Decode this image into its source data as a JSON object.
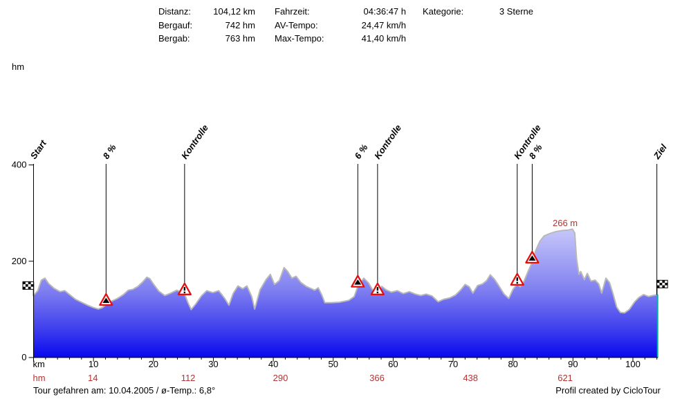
{
  "header": {
    "col1": [
      {
        "label": "Distanz:",
        "value": "104,12 km"
      },
      {
        "label": "Bergauf:",
        "value": "742 hm"
      },
      {
        "label": "Bergab:",
        "value": "763 hm"
      }
    ],
    "col2": [
      {
        "label": "Fahrzeit:",
        "value": "04:36:47 h"
      },
      {
        "label": "AV-Tempo:",
        "value": "24,47 km/h"
      },
      {
        "label": "Max-Tempo:",
        "value": "41,40 km/h"
      }
    ],
    "col3": [
      {
        "label": "Kategorie:",
        "value": "3 Sterne"
      }
    ]
  },
  "footer": {
    "left": "Tour gefahren am: 10.04.2005  /  ø-Temp.: 6,8°",
    "right": "Profil created by CicloTour"
  },
  "colors": {
    "accent_red": "#b43232",
    "marker_red": "#e01010",
    "outline_gray": "#b8b8b8",
    "edge_teal": "#00b0b0",
    "fill_top": "#f8f8ff",
    "fill_mid1": "#c4c4fa",
    "fill_mid2": "#8080f0",
    "fill_mid3": "#4040ee",
    "fill_bottom": "#0808ee"
  },
  "chart_data": {
    "type": "area",
    "title": "",
    "xlabel": "km",
    "ylabel": "hm",
    "xlim": [
      0,
      104.12
    ],
    "ylim": [
      0,
      400
    ],
    "grid": false,
    "legend": false,
    "x_axis": {
      "unit_label": "km",
      "major_ticks": [
        0,
        10,
        20,
        30,
        40,
        50,
        60,
        70,
        80,
        90,
        100
      ],
      "labeled_ticks": [
        10,
        20,
        30,
        40,
        50,
        60,
        70,
        80,
        90,
        100
      ],
      "minor_step": 2
    },
    "y_axis": {
      "unit_label": "hm",
      "ticks": [
        0,
        200,
        400
      ]
    },
    "hm_row": {
      "label": "hm",
      "entries": [
        {
          "km": 9.9,
          "text": "14"
        },
        {
          "km": 25.8,
          "text": "112"
        },
        {
          "km": 41.2,
          "text": "290"
        },
        {
          "km": 57.3,
          "text": "366"
        },
        {
          "km": 72.9,
          "text": "438"
        },
        {
          "km": 88.7,
          "text": "621"
        }
      ]
    },
    "peak_label": {
      "text": "266 m",
      "km": 88.7,
      "elev": 272
    },
    "annotations": [
      {
        "id": "start",
        "type": "flag-start",
        "label": "Start",
        "km": 0,
        "elev": 128
      },
      {
        "id": "slope-1",
        "type": "slope",
        "label": "8 %",
        "km": 12.1,
        "elev": 109
      },
      {
        "id": "kontrolle-1",
        "type": "control",
        "label": "Kontrolle",
        "km": 25.2,
        "elev": 131
      },
      {
        "id": "slope-2",
        "type": "slope",
        "label": "6 %",
        "km": 54.1,
        "elev": 147
      },
      {
        "id": "kontrolle-2",
        "type": "control",
        "label": "Kontrolle",
        "km": 57.4,
        "elev": 131
      },
      {
        "id": "kontrolle-3",
        "type": "control",
        "label": "Kontrolle",
        "km": 80.7,
        "elev": 151
      },
      {
        "id": "slope-3",
        "type": "slope",
        "label": "8 %",
        "km": 83.2,
        "elev": 197
      },
      {
        "id": "ziel",
        "type": "flag-finish",
        "label": "Ziel",
        "km": 104.0,
        "elev": 131
      }
    ],
    "profile": [
      [
        0,
        128
      ],
      [
        0.7,
        138
      ],
      [
        1.3,
        160
      ],
      [
        1.9,
        164
      ],
      [
        2.5,
        153
      ],
      [
        3.4,
        143
      ],
      [
        4.4,
        136
      ],
      [
        5.2,
        138
      ],
      [
        6,
        130
      ],
      [
        7,
        120
      ],
      [
        8,
        114
      ],
      [
        9,
        108
      ],
      [
        10,
        103
      ],
      [
        10.8,
        100
      ],
      [
        11.5,
        103
      ],
      [
        12.1,
        109
      ],
      [
        13,
        116
      ],
      [
        14,
        122
      ],
      [
        15,
        130
      ],
      [
        15.8,
        139
      ],
      [
        16.6,
        141
      ],
      [
        17.4,
        147
      ],
      [
        18.2,
        156
      ],
      [
        18.9,
        166
      ],
      [
        19.4,
        163
      ],
      [
        20,
        152
      ],
      [
        20.9,
        137
      ],
      [
        21.9,
        128
      ],
      [
        22.9,
        133
      ],
      [
        23.9,
        139
      ],
      [
        24.7,
        135
      ],
      [
        25.2,
        131
      ],
      [
        25.8,
        112
      ],
      [
        26.3,
        99
      ],
      [
        27.1,
        111
      ],
      [
        28,
        127
      ],
      [
        28.9,
        138
      ],
      [
        29.9,
        134
      ],
      [
        30.9,
        138
      ],
      [
        31.9,
        122
      ],
      [
        32.6,
        108
      ],
      [
        33.3,
        132
      ],
      [
        34.1,
        148
      ],
      [
        34.9,
        142
      ],
      [
        35.6,
        148
      ],
      [
        36.4,
        126
      ],
      [
        36.9,
        100
      ],
      [
        37.8,
        140
      ],
      [
        38.8,
        161
      ],
      [
        39.5,
        172
      ],
      [
        40.2,
        151
      ],
      [
        41,
        159
      ],
      [
        41.8,
        186
      ],
      [
        42.4,
        178
      ],
      [
        43.1,
        164
      ],
      [
        43.8,
        168
      ],
      [
        44.6,
        155
      ],
      [
        45.5,
        147
      ],
      [
        46.2,
        143
      ],
      [
        46.9,
        139
      ],
      [
        47.5,
        144
      ],
      [
        48.1,
        129
      ],
      [
        48.6,
        113
      ],
      [
        49.6,
        113
      ],
      [
        51,
        114
      ],
      [
        52.6,
        118
      ],
      [
        53.5,
        126
      ],
      [
        54.1,
        147
      ],
      [
        55.1,
        164
      ],
      [
        55.9,
        154
      ],
      [
        56.6,
        139
      ],
      [
        57.4,
        131
      ],
      [
        58.1,
        147
      ],
      [
        58.8,
        140
      ],
      [
        59.7,
        135
      ],
      [
        60.7,
        138
      ],
      [
        61.7,
        132
      ],
      [
        62.7,
        136
      ],
      [
        63.7,
        131
      ],
      [
        64.6,
        128
      ],
      [
        65.5,
        131
      ],
      [
        66.5,
        127
      ],
      [
        67.5,
        115
      ],
      [
        68.4,
        120
      ],
      [
        69.4,
        123
      ],
      [
        70.4,
        129
      ],
      [
        71.3,
        140
      ],
      [
        72,
        151
      ],
      [
        72.7,
        146
      ],
      [
        73.3,
        133
      ],
      [
        74.1,
        149
      ],
      [
        74.9,
        152
      ],
      [
        75.6,
        159
      ],
      [
        76.2,
        171
      ],
      [
        76.9,
        162
      ],
      [
        77.6,
        149
      ],
      [
        78.5,
        131
      ],
      [
        79.3,
        122
      ],
      [
        80,
        141
      ],
      [
        80.7,
        152
      ],
      [
        81.2,
        146
      ],
      [
        81.8,
        157
      ],
      [
        82.5,
        178
      ],
      [
        83.2,
        197
      ],
      [
        83.8,
        222
      ],
      [
        84.5,
        241
      ],
      [
        85.2,
        252
      ],
      [
        86.2,
        257
      ],
      [
        87.2,
        261
      ],
      [
        88.2,
        263
      ],
      [
        89.2,
        264
      ],
      [
        89.9,
        266
      ],
      [
        90.3,
        258
      ],
      [
        90.6,
        205
      ],
      [
        91,
        172
      ],
      [
        91.3,
        178
      ],
      [
        91.9,
        161
      ],
      [
        92.4,
        174
      ],
      [
        93,
        158
      ],
      [
        93.7,
        160
      ],
      [
        94.3,
        152
      ],
      [
        94.8,
        133
      ],
      [
        95.5,
        164
      ],
      [
        96.1,
        155
      ],
      [
        96.7,
        131
      ],
      [
        97.3,
        104
      ],
      [
        97.9,
        93
      ],
      [
        98.6,
        92
      ],
      [
        99.4,
        99
      ],
      [
        100.3,
        115
      ],
      [
        101,
        124
      ],
      [
        101.8,
        130
      ],
      [
        102.6,
        126
      ],
      [
        103.3,
        128
      ],
      [
        104.12,
        130
      ]
    ]
  }
}
